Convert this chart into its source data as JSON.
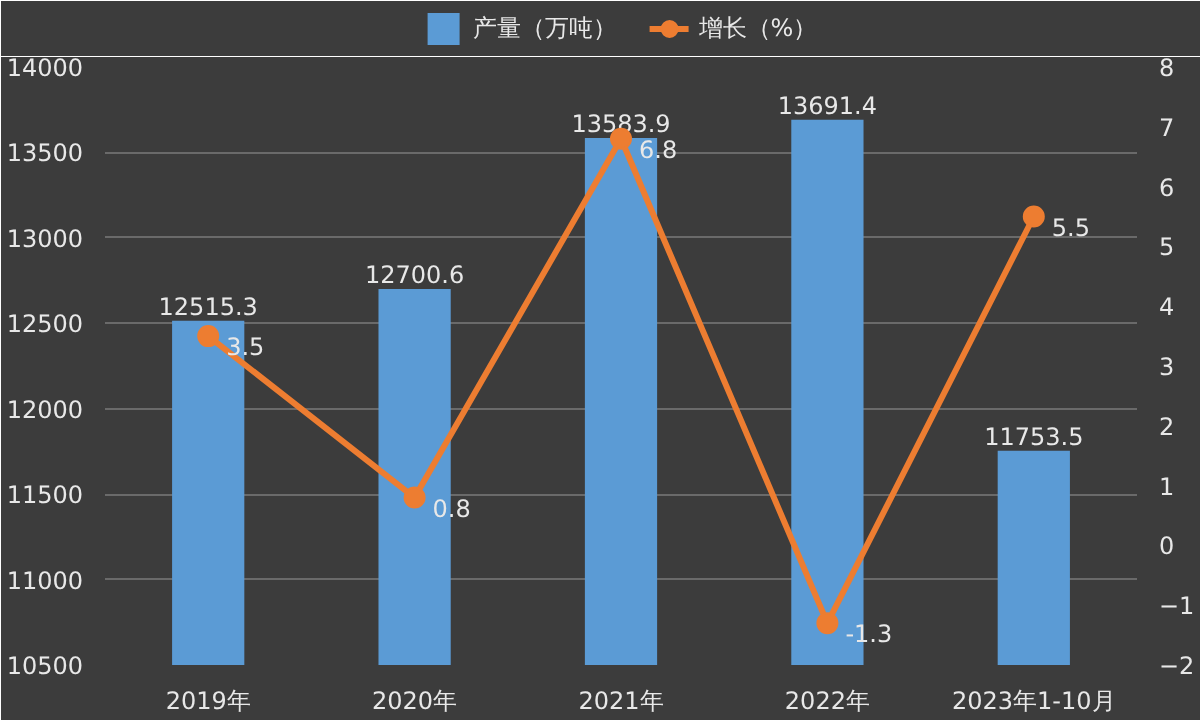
{
  "chart_data": {
    "type": "bar",
    "categories": [
      "2019年",
      "2020年",
      "2021年",
      "2022年",
      "2023年1-10月"
    ],
    "series": [
      {
        "name": "产量（万吨）",
        "color": "#5b9bd5",
        "values": [
          12515.3,
          12700.6,
          13583.9,
          13691.4,
          11753.5
        ]
      },
      {
        "name": "增长（%）",
        "type": "line",
        "axis": "y2",
        "color": "#ed7d31",
        "marker": "circle",
        "values": [
          3.5,
          0.8,
          6.8,
          -1.3,
          5.5
        ]
      }
    ],
    "ylim": [
      10500,
      14000
    ],
    "yticks": [
      10500,
      11000,
      11500,
      12000,
      12500,
      13000,
      13500,
      14000
    ],
    "y2lim": [
      -2,
      8
    ],
    "y2ticks": [
      -2,
      -1,
      0,
      1,
      2,
      3,
      4,
      5,
      6,
      7,
      8
    ],
    "grid": "y",
    "legend": "top",
    "data_labels": true
  }
}
